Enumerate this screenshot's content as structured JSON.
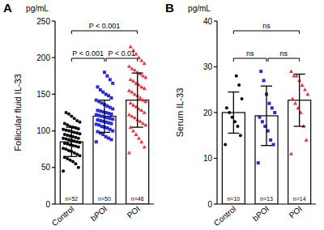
{
  "chart_data": [
    {
      "type": "bar",
      "title": "A",
      "y_label": "Follicular fluid IL-33",
      "y_unit": "pg/mL",
      "categories": [
        "Control",
        "bPOI",
        "POI"
      ],
      "values": [
        85,
        120,
        142
      ],
      "errors": [
        20,
        22,
        37
      ],
      "n_labels": [
        "n=52",
        "n=50",
        "n=46"
      ],
      "colors": [
        "#000000",
        "#2a2ad8",
        "#e8333c"
      ],
      "markers": [
        "circle",
        "square",
        "triangle"
      ],
      "points": [
        [
          45,
          50,
          55,
          58,
          60,
          62,
          64,
          66,
          68,
          70,
          72,
          73,
          75,
          76,
          78,
          79,
          80,
          81,
          82,
          83,
          84,
          85,
          86,
          87,
          88,
          89,
          90,
          90,
          91,
          92,
          93,
          94,
          95,
          96,
          97,
          98,
          99,
          100,
          101,
          102,
          103,
          104,
          105,
          106,
          108,
          110,
          112,
          114,
          117,
          120,
          123,
          125
        ],
        [
          85,
          88,
          90,
          92,
          95,
          97,
          99,
          100,
          102,
          104,
          105,
          106,
          108,
          109,
          110,
          111,
          112,
          113,
          114,
          115,
          116,
          117,
          118,
          119,
          120,
          121,
          122,
          123,
          124,
          125,
          126,
          127,
          128,
          130,
          132,
          134,
          136,
          138,
          140,
          142,
          145,
          148,
          150,
          153,
          156,
          160,
          165,
          170,
          175,
          180
        ],
        [
          70,
          78,
          85,
          90,
          95,
          100,
          105,
          108,
          110,
          113,
          115,
          118,
          120,
          122,
          125,
          128,
          130,
          133,
          135,
          138,
          140,
          142,
          145,
          148,
          150,
          153,
          155,
          158,
          160,
          163,
          165,
          168,
          170,
          173,
          175,
          178,
          180,
          183,
          185,
          188,
          192,
          196,
          200,
          205,
          210,
          215
        ]
      ],
      "comparisons": [
        {
          "pair": [
            "Control",
            "POI"
          ],
          "label": "P < 0.001"
        },
        {
          "pair": [
            "Control",
            "bPOI"
          ],
          "label": "P < 0.001"
        },
        {
          "pair": [
            "bPOI",
            "POI"
          ],
          "label": "P < 0.01"
        }
      ],
      "ylim": [
        0,
        250
      ],
      "yticks": [
        0,
        50,
        100,
        150,
        200,
        250
      ]
    },
    {
      "type": "bar",
      "title": "B",
      "y_label": "Serum IL-33",
      "y_unit": "pg/mL",
      "categories": [
        "Control",
        "bPOI",
        "POI"
      ],
      "values": [
        20,
        19.3,
        22.7
      ],
      "errors": [
        4.5,
        6.5,
        5.7
      ],
      "n_labels": [
        "n=10",
        "n=13",
        "n=14"
      ],
      "colors": [
        "#000000",
        "#2a2ad8",
        "#e8333c"
      ],
      "markers": [
        "circle",
        "square",
        "triangle"
      ],
      "points": [
        [
          13,
          15,
          17,
          18,
          19,
          20,
          21,
          23,
          26,
          28
        ],
        [
          9,
          13,
          14,
          16,
          17,
          18,
          19,
          20,
          21,
          22,
          24,
          27,
          29
        ],
        [
          11,
          14,
          17,
          20,
          21,
          22,
          23,
          24,
          25,
          26,
          27,
          28,
          28,
          29
        ]
      ],
      "comparisons": [
        {
          "pair": [
            "Control",
            "POI"
          ],
          "label": "ns"
        },
        {
          "pair": [
            "Control",
            "bPOI"
          ],
          "label": "ns"
        },
        {
          "pair": [
            "bPOI",
            "POI"
          ],
          "label": "ns"
        }
      ],
      "ylim": [
        0,
        40
      ],
      "yticks": [
        0,
        10,
        20,
        30,
        40
      ]
    }
  ]
}
